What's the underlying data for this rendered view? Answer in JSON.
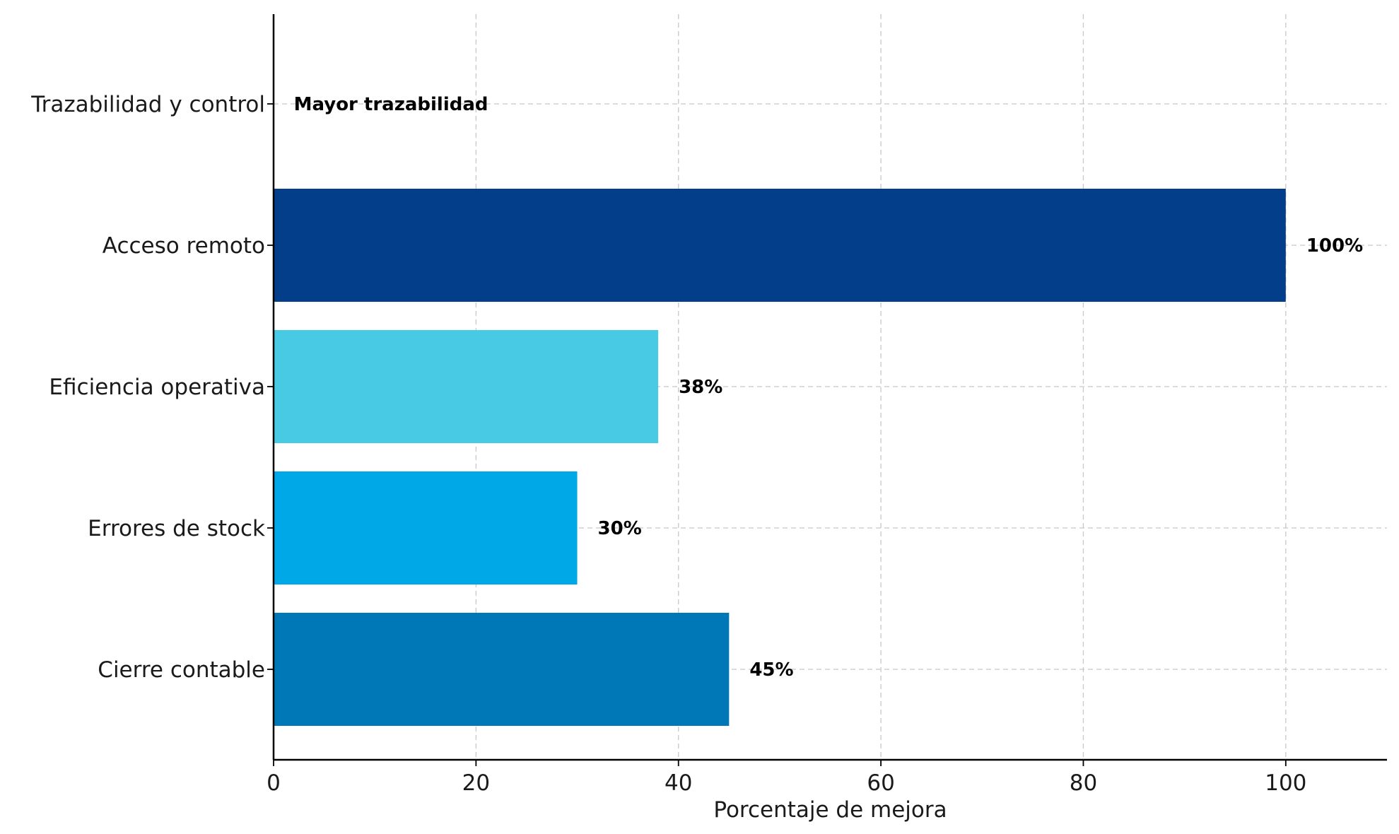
{
  "chart_data": {
    "type": "bar",
    "orientation": "horizontal",
    "categories": [
      "Cierre contable",
      "Errores de stock",
      "Eficiencia operativa",
      "Acceso remoto",
      "Trazabilidad y control"
    ],
    "values": [
      45,
      30,
      38,
      100,
      null
    ],
    "bar_labels": [
      "45%",
      "30%",
      "38%",
      "100%",
      "Mayor trazabilidad"
    ],
    "colors": [
      "#0077B6",
      "#00A8E8",
      "#48CAE4",
      "#023E8A",
      "#90E0EF"
    ],
    "xlabel": "Porcentaje de mejora",
    "ylabel": "",
    "xlim": [
      0,
      110
    ],
    "xticks": [
      0,
      20,
      40,
      60,
      80,
      100
    ],
    "grid": true
  }
}
